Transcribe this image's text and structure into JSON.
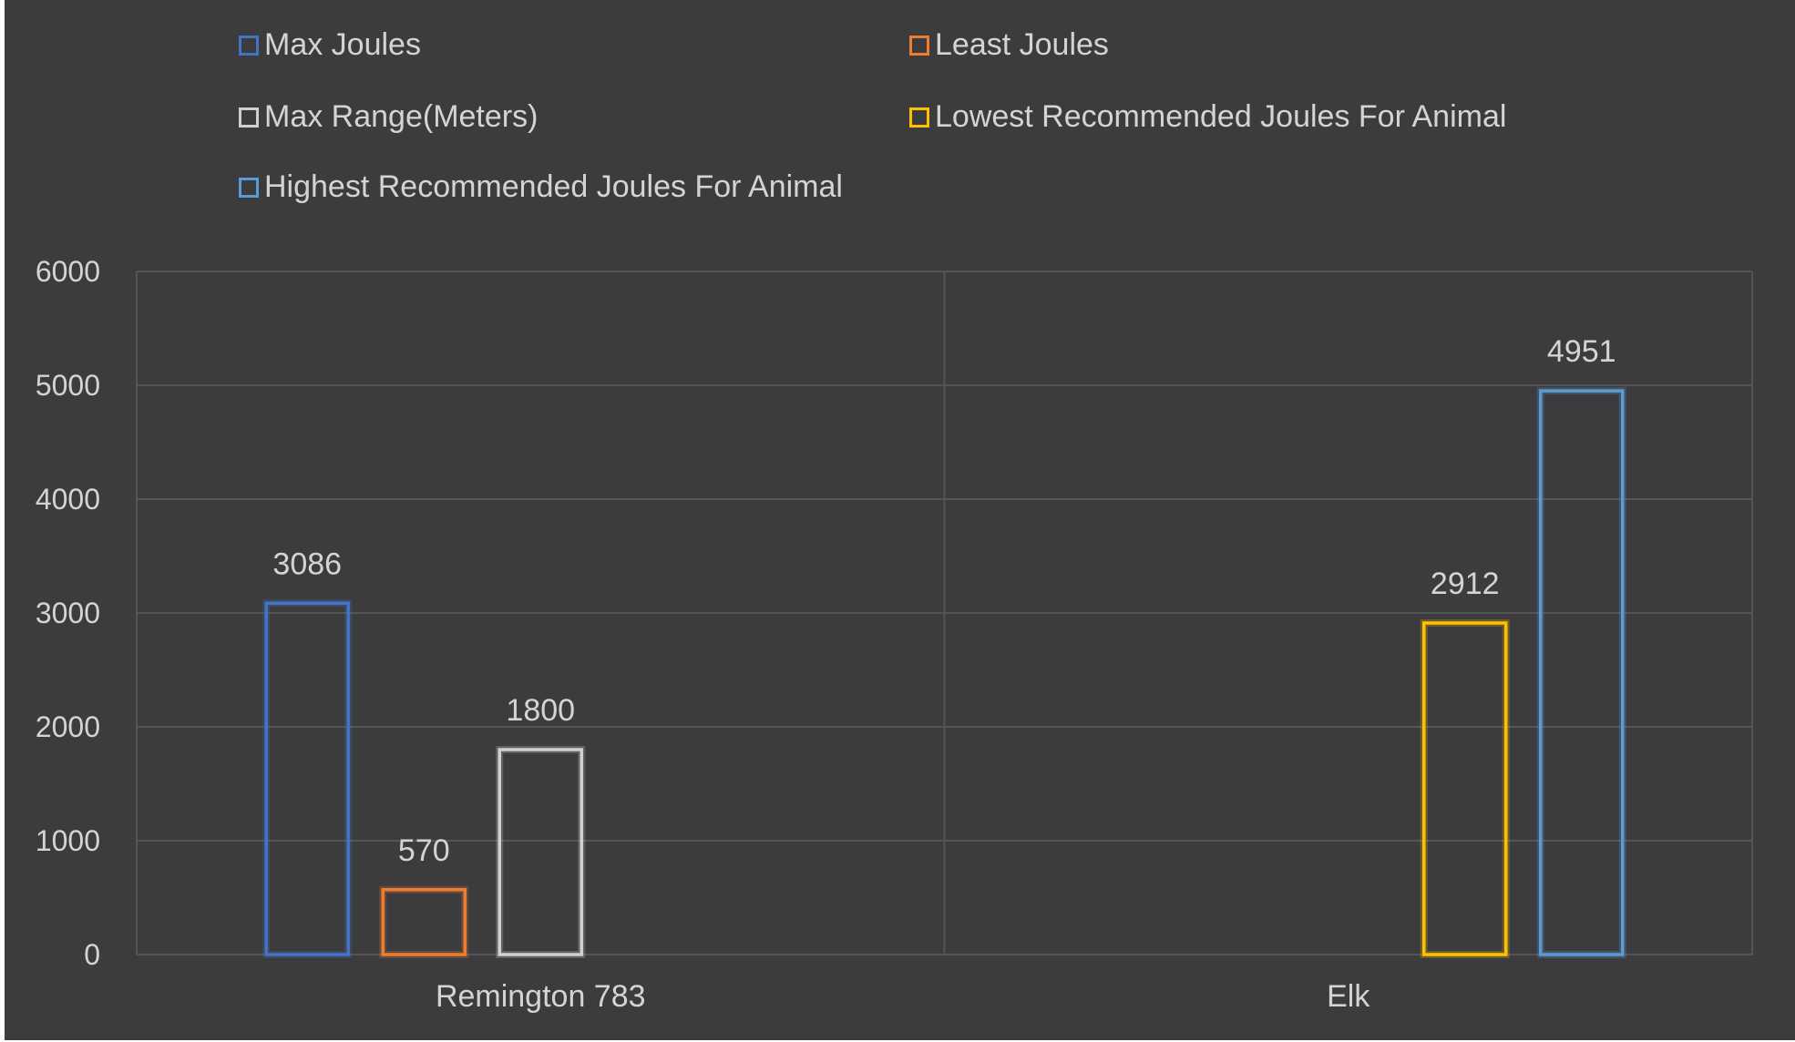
{
  "chart_data": {
    "type": "bar",
    "categories": [
      "Remington 783",
      "Elk"
    ],
    "series": [
      {
        "name": "Max Joules",
        "values": [
          3086,
          null
        ],
        "color": "#4472c4"
      },
      {
        "name": "Least Joules",
        "values": [
          570,
          null
        ],
        "color": "#ed7d31"
      },
      {
        "name": "Max Range(Meters)",
        "values": [
          1800,
          null
        ],
        "color": "#d0d0d0"
      },
      {
        "name": "Lowest Recommended Joules For Animal",
        "values": [
          null,
          2912
        ],
        "color": "#ffc000"
      },
      {
        "name": "Highest Recommended Joules For Animal",
        "values": [
          null,
          4951
        ],
        "color": "#5b9bd5"
      }
    ],
    "data_labels": true,
    "ylim": [
      0,
      6000
    ],
    "yticks": [
      0,
      1000,
      2000,
      3000,
      4000,
      5000,
      6000
    ],
    "grid": true,
    "legend_position": "top",
    "style": "outlined-bars",
    "background": "#3c3c3e"
  }
}
